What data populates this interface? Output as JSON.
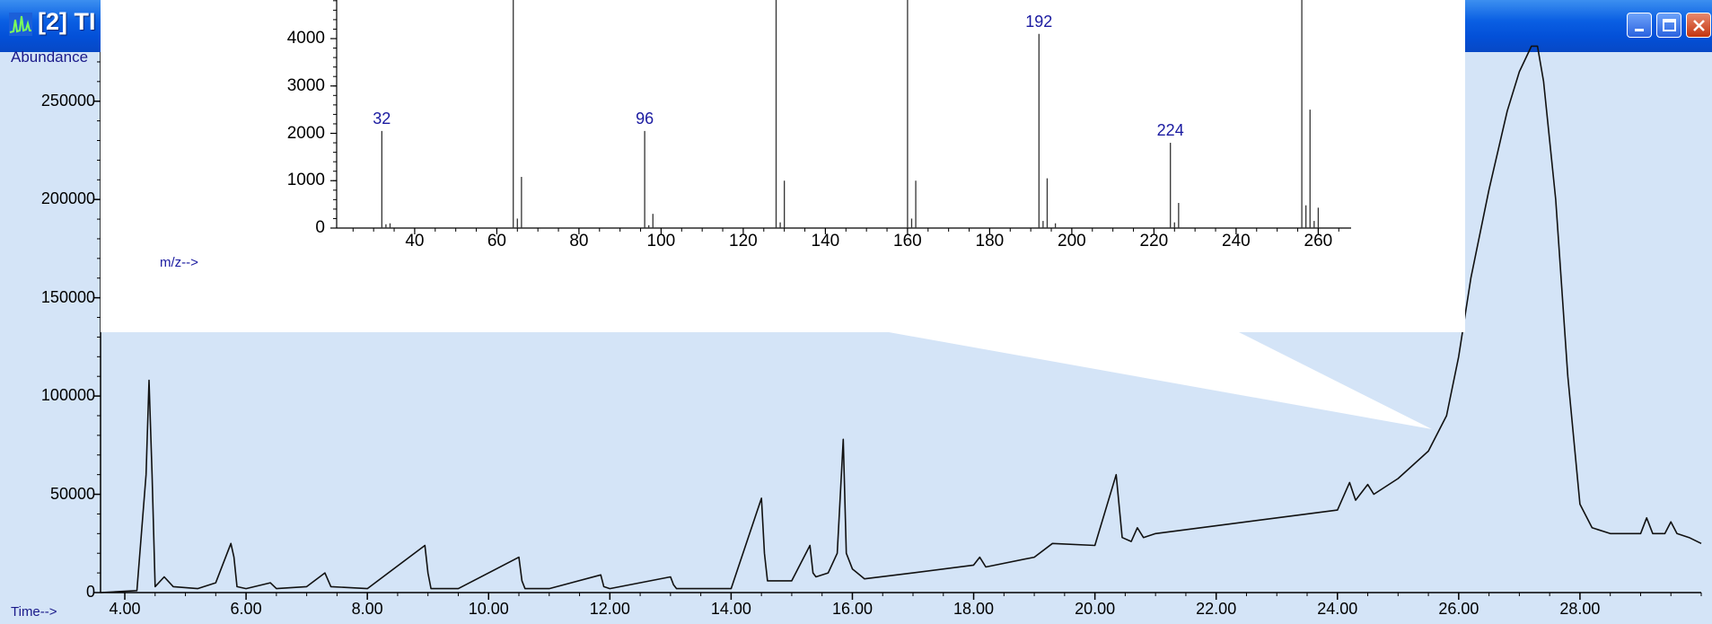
{
  "window": {
    "title": "[2] TI",
    "icon": "chromatogram-icon",
    "controls": [
      "minimize-icon",
      "maximize-icon",
      "close-icon"
    ]
  },
  "tic_chart": {
    "ylabel": "Abundance",
    "xlabel": "Time-->",
    "yticks": [
      "250000",
      "200000",
      "150000",
      "100000",
      "50000",
      "0"
    ],
    "xticks": [
      "4.00",
      "6.00",
      "8.00",
      "10.00",
      "12.00",
      "14.00",
      "16.00",
      "18.00",
      "20.00",
      "22.00",
      "24.00",
      "26.00",
      "28.00"
    ]
  },
  "mass_spectrum": {
    "xlabel": "m/z-->",
    "yticks": [
      "4000",
      "3000",
      "2000",
      "1000",
      "0"
    ],
    "xticks": [
      "40",
      "60",
      "80",
      "100",
      "120",
      "140",
      "160",
      "180",
      "200",
      "220",
      "240",
      "260"
    ],
    "peak_labels": [
      "32",
      "96",
      "192",
      "224"
    ]
  },
  "chart_data": [
    {
      "type": "line",
      "xlabel": "Time-->",
      "ylabel": "Abundance",
      "xlim": [
        3.6,
        30.0
      ],
      "ylim": [
        0,
        275000
      ],
      "grid": false,
      "x": [
        3.6,
        4.2,
        4.35,
        4.4,
        4.45,
        4.5,
        4.65,
        4.8,
        5.2,
        5.5,
        5.75,
        5.8,
        5.85,
        6.0,
        6.4,
        6.5,
        7.0,
        7.3,
        7.4,
        8.0,
        8.95,
        9.0,
        9.05,
        9.5,
        10.5,
        10.55,
        10.6,
        11.0,
        11.85,
        11.9,
        12.0,
        13.0,
        13.05,
        13.1,
        14.0,
        14.5,
        14.55,
        14.6,
        14.8,
        15.0,
        15.3,
        15.35,
        15.4,
        15.6,
        15.75,
        15.85,
        15.9,
        16.0,
        16.2,
        17.0,
        18.0,
        18.1,
        18.2,
        19.0,
        19.3,
        20.0,
        20.35,
        20.45,
        20.6,
        20.7,
        20.8,
        21.0,
        22.0,
        23.0,
        24.0,
        24.2,
        24.3,
        24.5,
        24.6,
        25.0,
        25.5,
        25.8,
        26.0,
        26.2,
        26.5,
        26.8,
        27.0,
        27.2,
        27.3,
        27.4,
        27.6,
        27.8,
        28.0,
        28.2,
        28.5,
        29.0,
        29.1,
        29.2,
        29.4,
        29.5,
        29.6,
        29.8,
        30.0
      ],
      "y": [
        0,
        1000,
        60000,
        108000,
        60000,
        3000,
        8000,
        3000,
        2000,
        5000,
        25000,
        18000,
        3000,
        2000,
        5000,
        2000,
        3000,
        10000,
        3000,
        2000,
        24000,
        10000,
        2000,
        2000,
        18000,
        6000,
        2000,
        2000,
        9000,
        3000,
        2000,
        8000,
        4000,
        2000,
        2000,
        48000,
        20000,
        6000,
        6000,
        6000,
        24000,
        10000,
        8000,
        10000,
        20000,
        78000,
        20000,
        12000,
        7000,
        10000,
        14000,
        18000,
        13000,
        18000,
        25000,
        24000,
        60000,
        28000,
        26000,
        33000,
        28000,
        30000,
        34000,
        38000,
        42000,
        56000,
        47000,
        55000,
        50000,
        58000,
        72000,
        90000,
        120000,
        160000,
        205000,
        245000,
        265000,
        278000,
        278000,
        260000,
        200000,
        110000,
        45000,
        33000,
        30000,
        30000,
        38000,
        30000,
        30000,
        36000,
        30000,
        28000,
        25000
      ]
    },
    {
      "type": "bar",
      "xlabel": "m/z-->",
      "xlim": [
        21,
        268
      ],
      "ylim": [
        0,
        4800
      ],
      "categories": [
        32,
        33,
        34,
        64,
        65,
        66,
        96,
        97,
        98,
        128,
        129,
        130,
        160,
        161,
        162,
        192,
        193,
        194,
        196,
        224,
        225,
        226,
        256,
        257,
        258,
        259,
        260
      ],
      "values": [
        2050,
        80,
        100,
        5000,
        200,
        1080,
        2050,
        60,
        300,
        5000,
        120,
        1000,
        5000,
        200,
        1000,
        4100,
        150,
        1050,
        100,
        1800,
        120,
        530,
        5000,
        480,
        2500,
        150,
        430
      ]
    }
  ]
}
